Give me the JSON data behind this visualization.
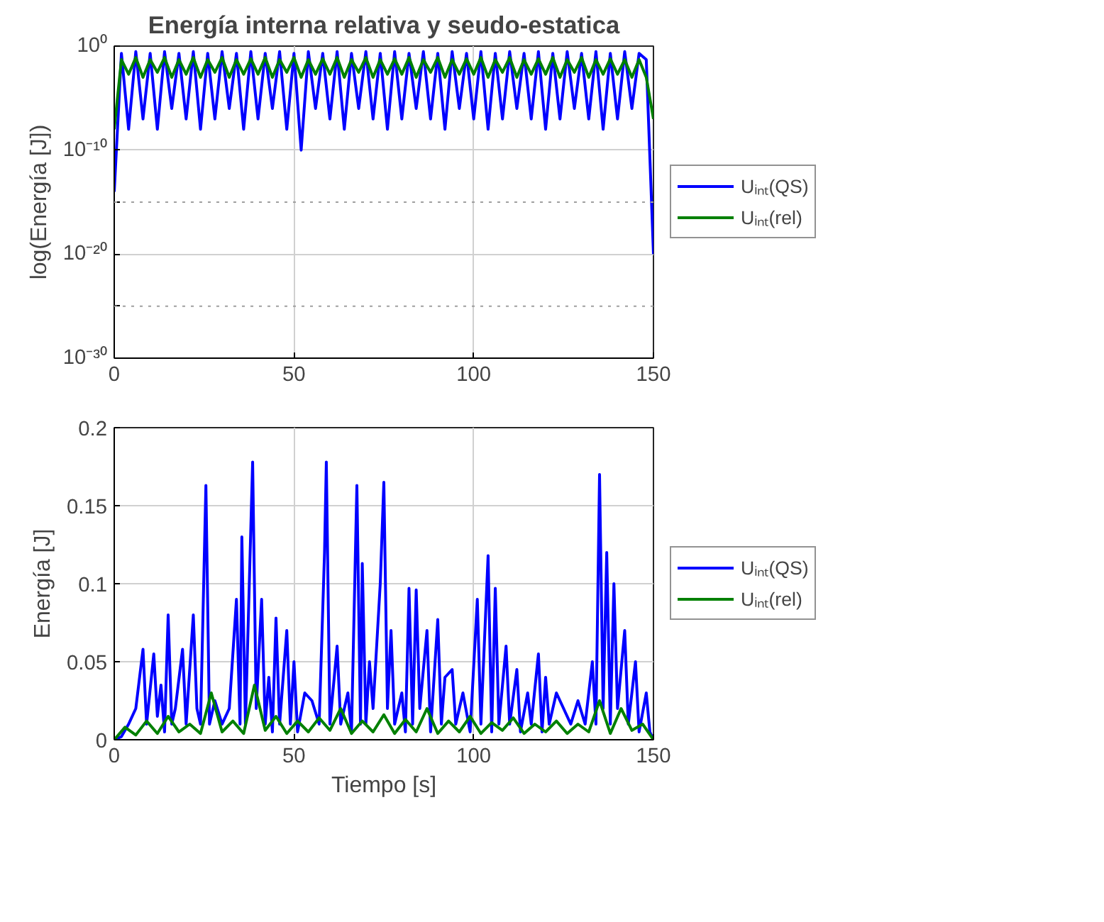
{
  "chart_data": [
    {
      "type": "line",
      "title": "Energía interna relativa y seudo-estatica",
      "ylabel": "log(Energía [J])",
      "log": true,
      "grid": true,
      "legend": "right",
      "line_style": "solid",
      "marker": "none",
      "xlim": [
        0,
        150
      ],
      "xticks": [
        0,
        50,
        100,
        150
      ],
      "ylim": [
        1e-30,
        1
      ],
      "yticks": [
        {
          "value": 1e-30,
          "label": "10⁻³⁰"
        },
        {
          "value": 1e-25,
          "label": null
        },
        {
          "value": 1e-20,
          "label": "10⁻²⁰"
        },
        {
          "value": 1e-15,
          "label": null
        },
        {
          "value": 1e-10,
          "label": "10⁻¹⁰"
        },
        {
          "value": 1,
          "label": "10⁰"
        }
      ],
      "x": [
        0,
        2,
        4,
        6,
        8,
        10,
        12,
        14,
        16,
        18,
        20,
        22,
        24,
        26,
        28,
        30,
        32,
        34,
        36,
        38,
        40,
        42,
        44,
        46,
        48,
        50,
        52,
        54,
        56,
        58,
        60,
        62,
        64,
        66,
        68,
        70,
        72,
        74,
        76,
        78,
        80,
        82,
        84,
        86,
        88,
        90,
        92,
        94,
        96,
        98,
        100,
        102,
        104,
        106,
        108,
        110,
        112,
        114,
        116,
        118,
        120,
        122,
        124,
        126,
        128,
        130,
        132,
        134,
        136,
        138,
        140,
        142,
        144,
        146,
        148,
        150
      ],
      "series": [
        {
          "name": "Uᵢₙₜ(QS)",
          "color": "#0000ff",
          "values": [
            1e-14,
            0.2,
            1e-08,
            0.3,
            1e-07,
            0.2,
            1e-08,
            0.3,
            1e-06,
            0.2,
            1e-07,
            0.3,
            1e-08,
            0.2,
            1e-07,
            0.3,
            1e-06,
            0.2,
            1e-08,
            0.3,
            1e-07,
            0.2,
            1e-06,
            0.3,
            1e-08,
            0.2,
            1e-10,
            0.3,
            1e-06,
            0.2,
            1e-07,
            0.3,
            1e-08,
            0.2,
            1e-06,
            0.3,
            1e-07,
            0.2,
            1e-08,
            0.3,
            1e-07,
            0.2,
            1e-06,
            0.3,
            1e-07,
            0.2,
            1e-08,
            0.3,
            1e-06,
            0.2,
            1e-07,
            0.3,
            1e-08,
            0.2,
            1e-07,
            0.3,
            1e-06,
            0.2,
            1e-07,
            0.3,
            1e-08,
            0.2,
            1e-07,
            0.3,
            1e-06,
            0.2,
            1e-07,
            0.3,
            1e-08,
            0.2,
            1e-07,
            0.3,
            1e-06,
            0.2,
            0.05,
            1e-20
          ]
        },
        {
          "name": "Uᵢₙₜ(rel)",
          "color": "#008000",
          "values": [
            1e-08,
            0.05,
            0.002,
            0.08,
            0.001,
            0.05,
            0.003,
            0.08,
            0.001,
            0.05,
            0.002,
            0.08,
            0.001,
            0.05,
            0.003,
            0.08,
            0.001,
            0.05,
            0.002,
            0.06,
            0.002,
            0.08,
            0.001,
            0.05,
            0.003,
            0.08,
            0.001,
            0.05,
            0.002,
            0.06,
            0.002,
            0.08,
            0.001,
            0.05,
            0.003,
            0.08,
            0.001,
            0.05,
            0.002,
            0.06,
            0.002,
            0.08,
            0.001,
            0.05,
            0.003,
            0.08,
            0.001,
            0.05,
            0.002,
            0.06,
            0.002,
            0.08,
            0.001,
            0.05,
            0.003,
            0.08,
            0.001,
            0.05,
            0.002,
            0.06,
            0.002,
            0.08,
            0.001,
            0.05,
            0.003,
            0.08,
            0.001,
            0.05,
            0.002,
            0.06,
            0.002,
            0.05,
            0.001,
            0.05,
            0.001,
            1e-07
          ]
        }
      ]
    },
    {
      "type": "line",
      "xlabel": "Tiempo [s]",
      "ylabel": "Energía [J]",
      "grid": true,
      "legend": "right",
      "line_style": "solid",
      "marker": "none",
      "xlim": [
        0,
        150
      ],
      "xticks": [
        0,
        50,
        100,
        150
      ],
      "ylim": [
        0,
        0.2
      ],
      "yticks": [
        0,
        0.05,
        0.1,
        0.15,
        0.2
      ],
      "series": [
        {
          "name": "Uᵢₙₜ(QS)",
          "color": "#0000ff",
          "x": [
            0,
            2,
            4,
            6,
            8,
            9,
            11,
            12,
            13,
            14,
            15,
            16,
            17,
            19,
            20,
            22,
            23,
            24,
            25.5,
            26.5,
            28,
            30,
            32,
            34,
            35,
            35.5,
            36.5,
            38.5,
            39.5,
            41,
            42,
            43,
            44,
            45,
            46,
            48,
            49,
            50,
            51,
            53,
            55,
            57,
            58.5,
            59,
            60,
            62,
            63,
            65,
            66,
            67.5,
            68.5,
            69,
            70,
            71,
            72,
            74,
            75,
            76,
            77,
            78,
            80,
            81,
            82,
            83,
            84,
            85,
            87,
            88,
            90,
            91,
            92,
            94,
            95,
            97,
            99,
            101,
            102,
            104,
            105,
            106,
            107,
            109,
            110,
            112,
            113,
            115,
            116,
            118,
            119,
            120,
            121,
            123,
            125,
            127,
            129,
            131,
            133,
            134,
            135,
            136,
            137,
            138,
            139,
            140,
            142,
            143,
            145,
            146,
            148,
            149,
            150
          ],
          "values": [
            0,
            0.002,
            0.01,
            0.02,
            0.058,
            0.01,
            0.055,
            0.015,
            0.035,
            0.005,
            0.08,
            0.01,
            0.02,
            0.058,
            0.01,
            0.08,
            0.02,
            0.01,
            0.163,
            0.01,
            0.025,
            0.01,
            0.02,
            0.09,
            0.01,
            0.13,
            0.01,
            0.178,
            0.02,
            0.09,
            0.01,
            0.04,
            0.005,
            0.078,
            0.01,
            0.07,
            0.01,
            0.05,
            0.005,
            0.03,
            0.025,
            0.01,
            0.12,
            0.178,
            0.01,
            0.06,
            0.01,
            0.03,
            0.005,
            0.163,
            0.01,
            0.113,
            0.01,
            0.05,
            0.02,
            0.1,
            0.165,
            0.02,
            0.07,
            0.01,
            0.03,
            0.005,
            0.097,
            0.01,
            0.096,
            0.02,
            0.07,
            0.005,
            0.077,
            0.01,
            0.04,
            0.045,
            0.01,
            0.03,
            0.005,
            0.09,
            0.01,
            0.118,
            0.005,
            0.097,
            0.01,
            0.06,
            0.01,
            0.045,
            0.005,
            0.03,
            0.01,
            0.055,
            0.005,
            0.04,
            0.01,
            0.03,
            0.02,
            0.01,
            0.025,
            0.01,
            0.05,
            0.01,
            0.17,
            0.02,
            0.12,
            0.01,
            0.1,
            0.02,
            0.07,
            0.01,
            0.05,
            0.005,
            0.03,
            0.005,
            0
          ]
        },
        {
          "name": "Uᵢₙₜ(rel)",
          "color": "#008000",
          "x": [
            0,
            3,
            6,
            9,
            12,
            15,
            18,
            21,
            24,
            27,
            30,
            33,
            36,
            39,
            42,
            45,
            48,
            51,
            54,
            57,
            60,
            63,
            66,
            69,
            72,
            75,
            78,
            81,
            84,
            87,
            90,
            93,
            96,
            99,
            102,
            105,
            108,
            111,
            114,
            117,
            120,
            123,
            126,
            129,
            132,
            135,
            138,
            141,
            144,
            147,
            150
          ],
          "values": [
            0,
            0.008,
            0.003,
            0.012,
            0.004,
            0.015,
            0.005,
            0.01,
            0.004,
            0.03,
            0.005,
            0.012,
            0.004,
            0.035,
            0.006,
            0.015,
            0.004,
            0.012,
            0.005,
            0.014,
            0.006,
            0.02,
            0.004,
            0.012,
            0.005,
            0.016,
            0.004,
            0.013,
            0.005,
            0.02,
            0.004,
            0.012,
            0.005,
            0.015,
            0.004,
            0.011,
            0.006,
            0.014,
            0.004,
            0.01,
            0.005,
            0.012,
            0.004,
            0.01,
            0.005,
            0.025,
            0.004,
            0.02,
            0.006,
            0.01,
            0
          ]
        }
      ]
    }
  ]
}
